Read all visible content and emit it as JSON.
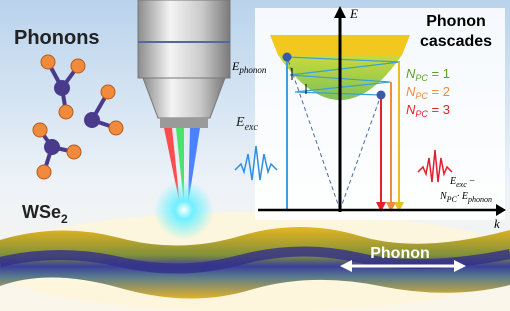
{
  "labels": {
    "phonons": "Phonons",
    "wse2": {
      "main": "WSe",
      "sub": "2"
    },
    "e_phonon": {
      "main": "E",
      "sub": "phonon"
    },
    "e_exc": {
      "main": "E",
      "sub": "exc"
    },
    "axis_e": "E",
    "axis_k": "k",
    "cascades": [
      "Phonon",
      "cascades"
    ],
    "npc": [
      {
        "main": "N",
        "sub": "PC",
        "rest": " = 1"
      },
      {
        "main": "N",
        "sub": "PC",
        "rest": " = 2"
      },
      {
        "main": "N",
        "sub": "PC",
        "rest": " = 3"
      }
    ],
    "result": {
      "main": "E",
      "sub": "exc",
      "rest": " −",
      "n": "N",
      "n_sub": "PC",
      "e": "· E",
      "e_sub": "phonon"
    },
    "phonon": "Phonon"
  }
}
